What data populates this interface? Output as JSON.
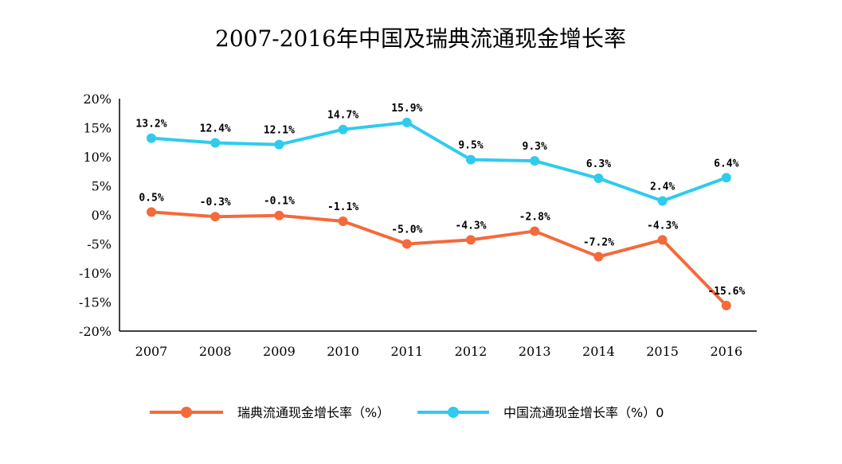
{
  "chart_data": {
    "type": "line",
    "title": "2007-2016年中国及瑞典流通现金增长率",
    "xlabel": "",
    "ylabel": "",
    "categories": [
      "2007",
      "2008",
      "2009",
      "2010",
      "2011",
      "2012",
      "2013",
      "2014",
      "2015",
      "2016"
    ],
    "ylim": [
      -20,
      20
    ],
    "yticks": [
      20,
      15,
      10,
      5,
      0,
      -5,
      -10,
      -15,
      -20
    ],
    "ytick_labels": [
      "20%",
      "15%",
      "10%",
      "5%",
      "0%",
      "-5%",
      "-10%",
      "-15%",
      "-20%"
    ],
    "grid": false,
    "legend_position": "bottom",
    "series": [
      {
        "name": "瑞典流通现金增长率（%）",
        "color": "#f46a3a",
        "values": [
          0.5,
          -0.3,
          -0.1,
          -1.1,
          -5.0,
          -4.3,
          -2.8,
          -7.2,
          -4.3,
          -15.6
        ],
        "labels": [
          "0.5%",
          "-0.3%",
          "-0.1%",
          "-1.1%",
          "-5.0%",
          "-4.3%",
          "-2.8%",
          "-7.2%",
          "-4.3%",
          "-15.6%"
        ]
      },
      {
        "name": "中国流通现金增长率（%）0",
        "color": "#2ecbef",
        "values": [
          13.2,
          12.4,
          12.1,
          14.7,
          15.9,
          9.5,
          9.3,
          6.3,
          2.4,
          6.4
        ],
        "labels": [
          "13.2%",
          "12.4%",
          "12.1%",
          "14.7%",
          "15.9%",
          "9.5%",
          "9.3%",
          "6.3%",
          "2.4%",
          "6.4%"
        ]
      }
    ]
  }
}
